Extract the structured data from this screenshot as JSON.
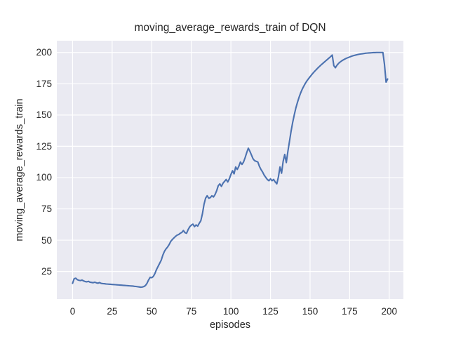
{
  "figure": {
    "title": "moving_average_rewards_train of DQN",
    "xlabel": "episodes",
    "ylabel": "moving_average_rewards_train"
  },
  "chart_data": {
    "type": "line",
    "title": "moving_average_rewards_train of DQN",
    "xlabel": "episodes",
    "ylabel": "moving_average_rewards_train",
    "grid": true,
    "legend": false,
    "xlim": [
      -9.95,
      208.95
    ],
    "ylim": [
      2.9,
      209.4
    ],
    "xticks": [
      0,
      25,
      50,
      75,
      100,
      125,
      150,
      175,
      200
    ],
    "yticks": [
      25,
      50,
      75,
      100,
      125,
      150,
      175,
      200
    ],
    "style": {
      "figure_bg": "#FFFFFF",
      "plot_bg": "#EAEAF2",
      "grid_color": "#FFFFFF",
      "grid_width": 1.2,
      "text_color": "#262626",
      "line_color": "#4C72B0",
      "line_width": 2.1
    },
    "series": [
      {
        "name": "moving_average_rewards_train",
        "color": "#4C72B0",
        "x_start": 0,
        "x_step": 1,
        "values": [
          15.5,
          19.2,
          19.6,
          18.4,
          17.9,
          17.7,
          18.1,
          17.4,
          16.9,
          16.7,
          17.1,
          16.4,
          16.2,
          16.0,
          16.4,
          15.9,
          15.6,
          16.1,
          15.5,
          15.3,
          15.2,
          15.0,
          14.9,
          14.8,
          14.7,
          14.6,
          14.5,
          14.4,
          14.3,
          14.2,
          14.1,
          14.0,
          13.9,
          13.8,
          13.7,
          13.6,
          13.5,
          13.4,
          13.3,
          13.1,
          13.0,
          12.8,
          12.6,
          12.4,
          12.5,
          12.9,
          13.7,
          15.5,
          18.2,
          20.3,
          20.0,
          21.0,
          23.3,
          26.5,
          29.0,
          31.5,
          34.0,
          38.0,
          41.0,
          43.0,
          44.5,
          46.5,
          49.0,
          50.5,
          51.8,
          53.0,
          54.0,
          54.5,
          55.5,
          56.2,
          57.7,
          56.0,
          55.5,
          58.5,
          60.7,
          62.0,
          62.8,
          60.8,
          62.2,
          61.2,
          63.5,
          65.5,
          71.0,
          78.5,
          83.5,
          85.5,
          83.5,
          84.0,
          85.5,
          84.5,
          86.5,
          89.5,
          93.5,
          95.0,
          93.0,
          95.5,
          97.0,
          98.5,
          96.5,
          99.0,
          102.5,
          105.5,
          103.0,
          108.5,
          106.5,
          109.0,
          112.5,
          110.5,
          112.5,
          116.0,
          120.0,
          123.5,
          121.0,
          118.0,
          115.0,
          113.5,
          113.0,
          112.5,
          109.0,
          106.5,
          104.5,
          102.0,
          100.2,
          98.5,
          97.5,
          99.0,
          97.5,
          98.5,
          96.5,
          95.0,
          100.5,
          108.5,
          103.5,
          113.0,
          118.5,
          112.0,
          121.0,
          129.0,
          137.0,
          144.0,
          150.0,
          155.5,
          160.0,
          164.0,
          167.5,
          170.5,
          173.0,
          175.3,
          177.3,
          179.0,
          180.6,
          182.2,
          183.7,
          185.1,
          186.4,
          187.7,
          188.9,
          190.1,
          191.2,
          192.3,
          193.4,
          194.5,
          195.6,
          196.7,
          198.0,
          189.5,
          187.8,
          189.8,
          191.3,
          192.4,
          193.3,
          194.1,
          194.8,
          195.4,
          195.9,
          196.4,
          196.9,
          197.3,
          197.7,
          198.0,
          198.3,
          198.6,
          198.8,
          199.0,
          199.2,
          199.4,
          199.5,
          199.6,
          199.7,
          199.8,
          199.9,
          199.9,
          200.0,
          200.0,
          200.0,
          200.0,
          200.0,
          190.5,
          176.3,
          178.8
        ]
      }
    ]
  }
}
